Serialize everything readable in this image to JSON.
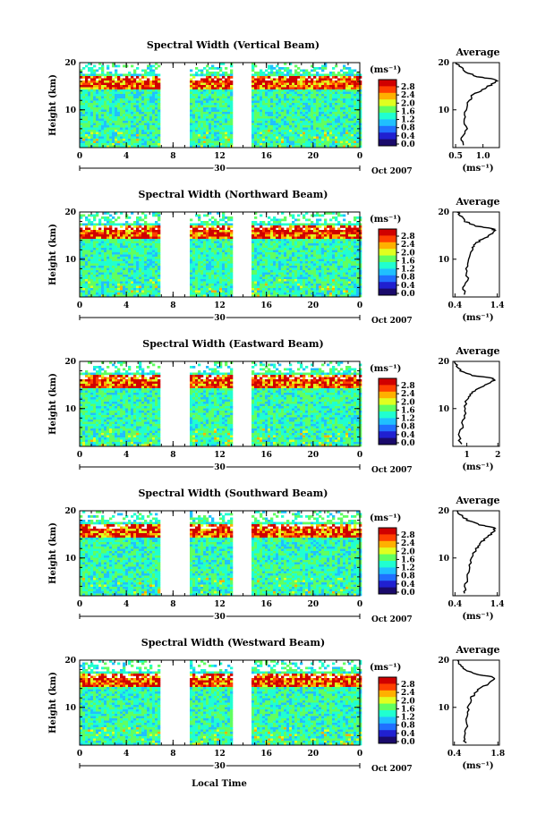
{
  "figure": {
    "xlabel_bottom": "Local Time"
  },
  "chart_data": [
    {
      "type": "heatmap",
      "title": "Spectral Width (Vertical Beam)",
      "ylabel": "Height (km)",
      "y_ticks": [
        "20",
        "10"
      ],
      "x_ticks": [
        "0",
        "4",
        "8",
        "12",
        "16",
        "20",
        "0"
      ],
      "date_day": "30",
      "date_month_year": "Oct 2007",
      "colorbar_unit": "(ms⁻¹)",
      "colorbar_ticks": [
        "2.8",
        "2.4",
        "2.0",
        "1.6",
        "1.2",
        "0.8",
        "0.4",
        "0.0"
      ],
      "xlim": [
        0,
        24
      ],
      "ylim": [
        2,
        20
      ],
      "gaps": [
        [
          6.8,
          9.3
        ],
        [
          12.9,
          14.6
        ]
      ],
      "average": {
        "title": "Average",
        "xlabel": "(ms⁻¹)",
        "x_ticks": [
          "0.5",
          "1.0"
        ],
        "y_ticks": [
          "20",
          "10"
        ],
        "heights": [
          2.5,
          4,
          6,
          8,
          10,
          12,
          13,
          14,
          15,
          16,
          16.5,
          17,
          18,
          19,
          20
        ],
        "values": [
          0.65,
          0.6,
          0.7,
          0.65,
          0.7,
          0.75,
          0.8,
          0.95,
          1.1,
          1.25,
          1.2,
          0.9,
          0.7,
          0.6,
          0.5
        ]
      }
    },
    {
      "type": "heatmap",
      "title": "Spectral Width (Northward Beam)",
      "ylabel": "Height (km)",
      "y_ticks": [
        "20",
        "10"
      ],
      "x_ticks": [
        "0",
        "4",
        "8",
        "12",
        "16",
        "20",
        "0"
      ],
      "date_day": "30",
      "date_month_year": "Oct 2007",
      "colorbar_unit": "(ms⁻¹)",
      "colorbar_ticks": [
        "2.8",
        "2.4",
        "2.0",
        "1.6",
        "1.2",
        "0.8",
        "0.4",
        "0.0"
      ],
      "xlim": [
        0,
        24
      ],
      "ylim": [
        2,
        20
      ],
      "gaps": [
        [
          6.8,
          9.3
        ],
        [
          12.9,
          14.6
        ]
      ],
      "average": {
        "title": "Average",
        "xlabel": "(ms⁻¹)",
        "x_ticks": [
          "0.4",
          "1.4"
        ],
        "y_ticks": [
          "20",
          "10"
        ],
        "heights": [
          2.5,
          4,
          6,
          8,
          10,
          12,
          13,
          14,
          15,
          16,
          16.5,
          17,
          18,
          19,
          20
        ],
        "values": [
          0.65,
          0.6,
          0.7,
          0.65,
          0.75,
          0.8,
          0.85,
          1.0,
          1.2,
          1.35,
          1.3,
          0.9,
          0.65,
          0.55,
          0.45
        ]
      }
    },
    {
      "type": "heatmap",
      "title": "Spectral Width (Eastward Beam)",
      "ylabel": "Height (km)",
      "y_ticks": [
        "20",
        "10"
      ],
      "x_ticks": [
        "0",
        "4",
        "8",
        "12",
        "16",
        "20",
        "0"
      ],
      "date_day": "30",
      "date_month_year": "Oct 2007",
      "colorbar_unit": "(ms⁻¹)",
      "colorbar_ticks": [
        "2.8",
        "2.4",
        "2.0",
        "1.6",
        "1.2",
        "0.8",
        "0.4",
        "0.0"
      ],
      "xlim": [
        0,
        24
      ],
      "ylim": [
        2,
        20
      ],
      "gaps": [
        [
          6.8,
          9.3
        ],
        [
          12.9,
          14.6
        ]
      ],
      "average": {
        "title": "Average",
        "xlabel": "(ms⁻¹)",
        "x_ticks": [
          "1",
          "2"
        ],
        "y_ticks": [
          "20",
          "10"
        ],
        "heights": [
          2.5,
          4,
          6,
          8,
          10,
          12,
          13,
          14,
          15,
          16,
          16.5,
          17,
          18,
          19,
          20
        ],
        "values": [
          0.8,
          0.75,
          0.85,
          0.9,
          0.95,
          1.0,
          1.1,
          1.3,
          1.6,
          1.9,
          1.8,
          1.2,
          0.8,
          0.7,
          0.6
        ]
      }
    },
    {
      "type": "heatmap",
      "title": "Spectral Width (Southward Beam)",
      "ylabel": "Height (km)",
      "y_ticks": [
        "20",
        "10"
      ],
      "x_ticks": [
        "0",
        "4",
        "8",
        "12",
        "16",
        "20",
        "0"
      ],
      "date_day": "30",
      "date_month_year": "Oct 2007",
      "colorbar_unit": "(ms⁻¹)",
      "colorbar_ticks": [
        "2.8",
        "2.4",
        "2.0",
        "1.6",
        "1.2",
        "0.8",
        "0.4",
        "0.0"
      ],
      "xlim": [
        0,
        24
      ],
      "ylim": [
        2,
        20
      ],
      "gaps": [
        [
          6.8,
          9.3
        ],
        [
          12.9,
          14.6
        ]
      ],
      "average": {
        "title": "Average",
        "xlabel": "(ms⁻¹)",
        "x_ticks": [
          "0.4",
          "1.4"
        ],
        "y_ticks": [
          "20",
          "10"
        ],
        "heights": [
          2.5,
          4,
          6,
          8,
          10,
          12,
          13,
          14,
          15,
          16,
          16.5,
          17,
          18,
          19,
          20
        ],
        "values": [
          0.6,
          0.65,
          0.7,
          0.75,
          0.8,
          0.9,
          1.0,
          1.1,
          1.25,
          1.35,
          1.3,
          1.0,
          0.7,
          0.55,
          0.45
        ]
      }
    },
    {
      "type": "heatmap",
      "title": "Spectral Width (Westward Beam)",
      "ylabel": "Height (km)",
      "y_ticks": [
        "20",
        "10"
      ],
      "x_ticks": [
        "0",
        "4",
        "8",
        "12",
        "16",
        "20",
        "0"
      ],
      "date_day": "30",
      "date_month_year": "Oct 2007",
      "colorbar_unit": "(ms⁻¹)",
      "colorbar_ticks": [
        "2.8",
        "2.4",
        "2.0",
        "1.6",
        "1.2",
        "0.8",
        "0.4",
        "0.0"
      ],
      "xlim": [
        0,
        24
      ],
      "ylim": [
        2,
        20
      ],
      "gaps": [
        [
          6.8,
          9.3
        ],
        [
          12.9,
          14.6
        ]
      ],
      "average": {
        "title": "Average",
        "xlabel": "(ms⁻¹)",
        "x_ticks": [
          "0.4",
          "1.8"
        ],
        "y_ticks": [
          "20",
          "10"
        ],
        "heights": [
          2.5,
          4,
          6,
          8,
          10,
          12,
          13,
          14,
          15,
          16,
          16.5,
          17,
          18,
          19,
          20
        ],
        "values": [
          0.75,
          0.7,
          0.8,
          0.8,
          0.85,
          0.95,
          1.05,
          1.2,
          1.5,
          1.7,
          1.6,
          1.1,
          0.75,
          0.6,
          0.5
        ]
      }
    }
  ],
  "colors": {
    "colormap": [
      "#1a0a6b",
      "#2020d0",
      "#2070ff",
      "#20c0ff",
      "#20ffd0",
      "#60ff60",
      "#e0ff20",
      "#ffb000",
      "#ff4000",
      "#d00000"
    ],
    "axis": "#000000",
    "gap": "#ffffff",
    "background": "#ffffff"
  }
}
